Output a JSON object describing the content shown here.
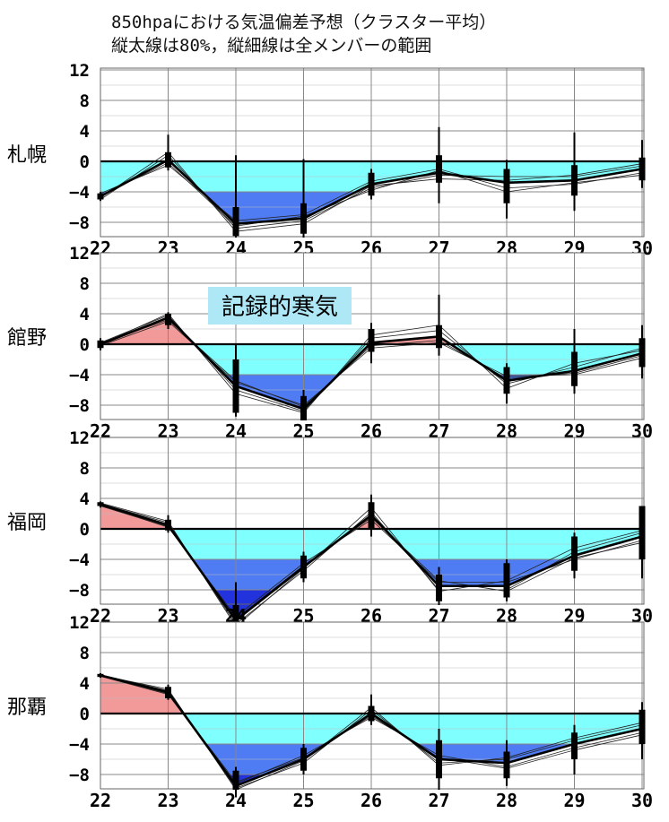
{
  "title": {
    "line1": "850hpaにおける気温偏差予想（クラスター平均）",
    "line2": "縦太線は80%，縦細線は全メンバーの範囲"
  },
  "annotation": "記録的寒気",
  "colors": {
    "positive": "#f29a9a",
    "negative_light": "#80ffff",
    "negative_mid": "#4f7cf2",
    "negative_deep": "#2233dd",
    "line": "#000000",
    "grid": "#888888",
    "annotation_bg": "#aee8f7"
  },
  "chart_data": [
    {
      "type": "line",
      "panel": "札幌",
      "x": [
        "22",
        "23",
        "24",
        "25",
        "26",
        "27",
        "28",
        "29",
        "30"
      ],
      "ylim": [
        -10,
        12
      ],
      "yticks": [
        12,
        8,
        4,
        0,
        -4,
        -8
      ],
      "mean": [
        -4.6,
        0.2,
        -8.2,
        -7.5,
        -3.0,
        -1.5,
        -2.8,
        -2.5,
        -1.0
      ],
      "members": [
        [
          -5.0,
          0.8,
          -8.8,
          -7.8,
          -3.5,
          -1.8,
          -2.0,
          -2.0,
          -0.6
        ],
        [
          -4.2,
          -0.5,
          -7.8,
          -7.0,
          -2.6,
          -1.0,
          -3.5,
          -3.0,
          -1.5
        ],
        [
          -4.8,
          1.2,
          -9.2,
          -8.2,
          -3.2,
          -2.3,
          -2.5,
          -1.8,
          -0.3
        ],
        [
          -4.5,
          -0.2,
          -8.5,
          -7.2,
          -3.8,
          -1.2,
          -4.0,
          -2.8,
          -1.8
        ]
      ],
      "range80": [
        [
          -5.0,
          -4.2
        ],
        [
          -0.8,
          1.2
        ],
        [
          -9.8,
          -6.0
        ],
        [
          -9.5,
          -5.5
        ],
        [
          -4.5,
          -1.5
        ],
        [
          -2.8,
          0.8
        ],
        [
          -5.5,
          -1.0
        ],
        [
          -4.5,
          -0.5
        ],
        [
          -2.5,
          0.5
        ]
      ],
      "range_all": [
        [
          -5.2,
          -4.0
        ],
        [
          -1.2,
          3.5
        ],
        [
          -10,
          0.8
        ],
        [
          -10,
          0.3
        ],
        [
          -5.0,
          -1.0
        ],
        [
          -5.5,
          4.5
        ],
        [
          -7.5,
          0.2
        ],
        [
          -6.5,
          3.8
        ],
        [
          -3.5,
          2.8
        ]
      ]
    },
    {
      "type": "line",
      "panel": "館野",
      "x": [
        "22",
        "23",
        "24",
        "25",
        "26",
        "27",
        "28",
        "29",
        "30"
      ],
      "ylim": [
        -10,
        12
      ],
      "yticks": [
        12,
        8,
        4,
        0,
        -4,
        -8
      ],
      "mean": [
        0.0,
        3.5,
        -5.5,
        -8.5,
        0.2,
        1.0,
        -4.8,
        -3.5,
        -1.2
      ],
      "members": [
        [
          0.2,
          3.8,
          -6.0,
          -8.8,
          0.8,
          1.8,
          -5.2,
          -3.0,
          -0.5
        ],
        [
          -0.2,
          3.0,
          -5.0,
          -8.0,
          -0.5,
          0.2,
          -4.2,
          -4.0,
          -1.8
        ],
        [
          0.0,
          4.0,
          -6.5,
          -9.0,
          1.2,
          2.5,
          -5.8,
          -2.5,
          -0.8
        ],
        [
          0.1,
          3.2,
          -4.8,
          -8.2,
          -0.2,
          0.5,
          -4.5,
          -3.8,
          -1.5
        ]
      ],
      "range80": [
        [
          -0.5,
          0.5
        ],
        [
          2.5,
          4.0
        ],
        [
          -9.0,
          -2.0
        ],
        [
          -10,
          -6.8
        ],
        [
          -1.0,
          2.0
        ],
        [
          -0.5,
          2.5
        ],
        [
          -6.5,
          -3.0
        ],
        [
          -5.5,
          -1.0
        ],
        [
          -3.0,
          0.8
        ]
      ],
      "range_all": [
        [
          -0.8,
          0.8
        ],
        [
          2.0,
          4.2
        ],
        [
          -9.5,
          0.0
        ],
        [
          -10,
          -6.0
        ],
        [
          -2.5,
          2.8
        ],
        [
          -1.5,
          6.5
        ],
        [
          -7.8,
          -2.5
        ],
        [
          -6.5,
          2.0
        ],
        [
          -4.5,
          2.5
        ]
      ]
    },
    {
      "type": "line",
      "panel": "福岡",
      "x": [
        "22",
        "23",
        "24",
        "25",
        "26",
        "27",
        "28",
        "29",
        "30"
      ],
      "ylim": [
        -10,
        12
      ],
      "yticks": [
        12,
        8,
        4,
        0,
        -4,
        -8
      ],
      "mean": [
        3.2,
        0.5,
        -12.0,
        -5.0,
        1.8,
        -7.5,
        -7.5,
        -3.5,
        -1.0
      ],
      "members": [
        [
          3.3,
          0.8,
          -12.5,
          -5.5,
          2.2,
          -8.0,
          -8.0,
          -3.0,
          -0.5
        ],
        [
          3.1,
          0.2,
          -11.5,
          -4.5,
          1.2,
          -7.0,
          -7.0,
          -4.0,
          -1.5
        ],
        [
          3.4,
          1.0,
          -12.8,
          -5.2,
          2.8,
          -8.2,
          -6.8,
          -2.5,
          -0.2
        ],
        [
          3.0,
          0.3,
          -11.8,
          -4.8,
          1.5,
          -6.8,
          -8.2,
          -3.8,
          -1.8
        ]
      ],
      "range80": [
        [
          3.0,
          3.5
        ],
        [
          -0.2,
          1.2
        ],
        [
          -14,
          -10
        ],
        [
          -6.5,
          -3.5
        ],
        [
          0.0,
          3.5
        ],
        [
          -9.5,
          -6.0
        ],
        [
          -9.0,
          -4.5
        ],
        [
          -5.5,
          -1.0
        ],
        [
          -4.0,
          3.0
        ]
      ],
      "range_all": [
        [
          2.8,
          3.6
        ],
        [
          -0.5,
          1.8
        ],
        [
          -16,
          -7.0
        ],
        [
          -7.0,
          -3.0
        ],
        [
          -1.0,
          4.5
        ],
        [
          -10,
          -5.0
        ],
        [
          -9.5,
          -4.0
        ],
        [
          -6.5,
          -0.5
        ],
        [
          -6.5,
          3.0
        ]
      ]
    },
    {
      "type": "line",
      "panel": "那覇",
      "x": [
        "22",
        "23",
        "24",
        "25",
        "26",
        "27",
        "28",
        "29",
        "30"
      ],
      "ylim": [
        -10,
        12
      ],
      "yticks": [
        12,
        8,
        4,
        0,
        -4,
        -8
      ],
      "mean": [
        5.0,
        2.8,
        -9.5,
        -6.0,
        0.0,
        -6.0,
        -6.5,
        -4.0,
        -2.0
      ],
      "members": [
        [
          5.1,
          3.0,
          -9.8,
          -6.5,
          0.5,
          -6.5,
          -6.0,
          -3.5,
          -1.5
        ],
        [
          4.9,
          2.5,
          -9.2,
          -5.5,
          -0.5,
          -5.5,
          -7.0,
          -4.5,
          -2.5
        ],
        [
          5.0,
          3.2,
          -10,
          -6.2,
          0.8,
          -6.8,
          -5.8,
          -3.2,
          -1.2
        ],
        [
          5.0,
          2.6,
          -9.0,
          -5.8,
          -0.3,
          -5.8,
          -7.2,
          -4.8,
          -2.8
        ]
      ],
      "range80": [
        [
          4.8,
          5.2
        ],
        [
          2.0,
          3.5
        ],
        [
          -10,
          -7.5
        ],
        [
          -7.5,
          -4.5
        ],
        [
          -1.0,
          1.0
        ],
        [
          -8.5,
          -3.5
        ],
        [
          -8.5,
          -5.0
        ],
        [
          -6.0,
          -2.5
        ],
        [
          -4.0,
          0.5
        ]
      ],
      "range_all": [
        [
          4.7,
          5.3
        ],
        [
          1.8,
          3.8
        ],
        [
          -11,
          -7.0
        ],
        [
          -8.0,
          -4.0
        ],
        [
          -1.5,
          2.5
        ],
        [
          -10,
          -2.0
        ],
        [
          -9.5,
          -3.5
        ],
        [
          -8.0,
          -1.5
        ],
        [
          -6.0,
          1.5
        ]
      ]
    }
  ]
}
